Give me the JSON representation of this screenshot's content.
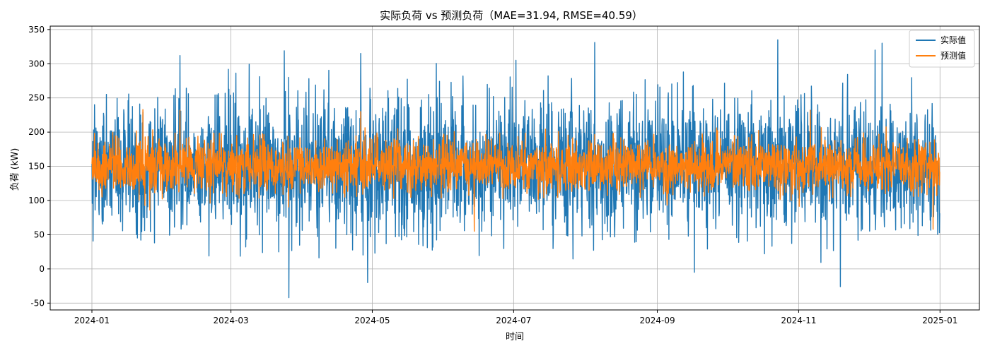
{
  "chart_data": {
    "type": "line",
    "title": "实际负荷 vs 预测负荷（MAE=31.94, RMSE=40.59）",
    "xlabel": "时间",
    "ylabel": "负荷 (kW)",
    "xlim": [
      "2023-12-14",
      "2025-01-18"
    ],
    "ylim": [
      -60,
      355
    ],
    "x_ticks": [
      "2024-01",
      "2024-03",
      "2024-05",
      "2024-07",
      "2024-09",
      "2024-11",
      "2025-01"
    ],
    "x_tick_dates": [
      "2024-01-01",
      "2024-03-01",
      "2024-05-01",
      "2024-07-01",
      "2024-09-01",
      "2024-11-01",
      "2025-01-01"
    ],
    "y_ticks": [
      -50,
      0,
      50,
      100,
      150,
      200,
      250,
      300,
      350
    ],
    "grid": true,
    "legend_position": "top-right",
    "date_range": [
      "2024-01-01",
      "2024-12-31"
    ],
    "series": [
      {
        "name": "实际值",
        "color": "#1f77b4",
        "typical_center": 150,
        "typical_band": [
          50,
          250
        ],
        "extremes": [
          {
            "date": "2024-03-26",
            "value": -42
          },
          {
            "date": "2024-10-23",
            "value": 335
          },
          {
            "date": "2024-08-05",
            "value": 331
          },
          {
            "date": "2024-12-07",
            "value": 330
          },
          {
            "date": "2024-03-24",
            "value": 319
          },
          {
            "date": "2024-02-08",
            "value": 312
          },
          {
            "date": "2024-04-26",
            "value": 315
          },
          {
            "date": "2024-07-02",
            "value": 305
          },
          {
            "date": "2024-11-19",
            "value": -26
          },
          {
            "date": "2024-04-29",
            "value": -20
          },
          {
            "date": "2024-09-17",
            "value": -5
          },
          {
            "date": "2024-12-04",
            "value": 320
          }
        ]
      },
      {
        "name": "预测值",
        "color": "#ff7f0e",
        "typical_center": 150,
        "typical_band": [
          110,
          190
        ],
        "extremes": [
          {
            "date": "2024-01-23",
            "value": 233
          },
          {
            "date": "2024-02-08",
            "value": 232
          },
          {
            "date": "2024-04-26",
            "value": 230
          },
          {
            "date": "2024-11-06",
            "value": 232
          },
          {
            "date": "2024-12-29",
            "value": 58
          },
          {
            "date": "2024-06-14",
            "value": 55
          },
          {
            "date": "2024-01-26",
            "value": 86
          }
        ]
      }
    ]
  }
}
